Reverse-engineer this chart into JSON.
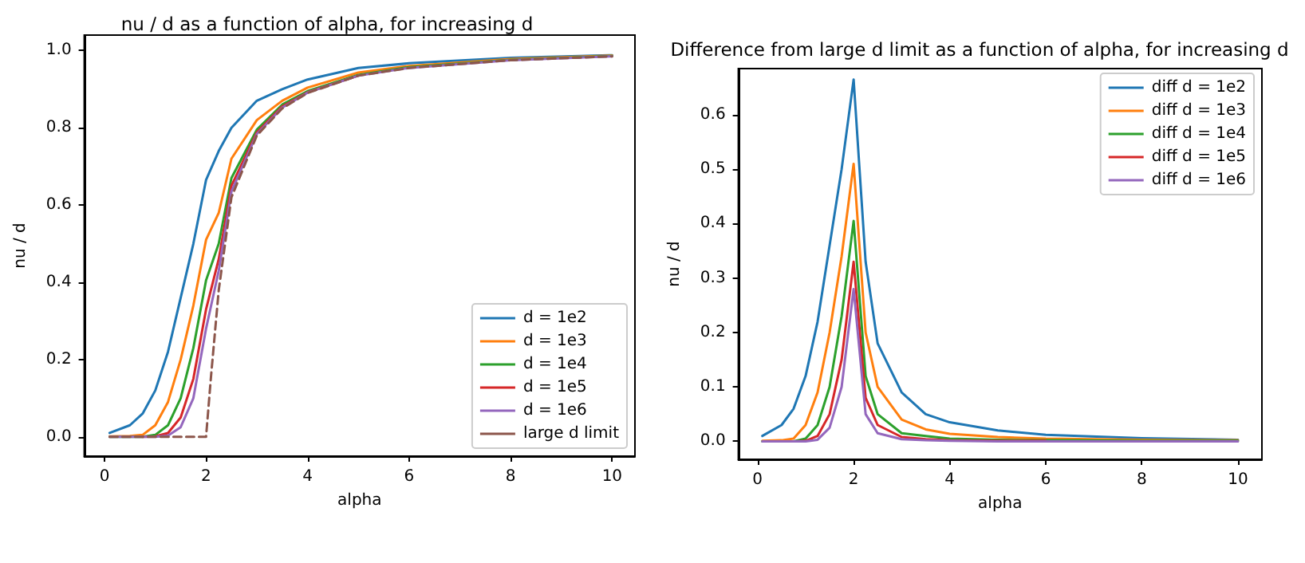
{
  "chart_data": [
    {
      "type": "line",
      "title": "nu / d as a function of alpha, for increasing d",
      "xlabel": "alpha",
      "ylabel": "nu / d",
      "legend": "bottom right",
      "x": [
        0.1,
        0.5,
        0.75,
        1,
        1.25,
        1.5,
        1.75,
        2,
        2.25,
        2.5,
        3,
        3.5,
        4,
        5,
        6,
        8,
        10
      ],
      "xlim": [
        -0.4,
        10.45
      ],
      "xticks": [
        0,
        2,
        4,
        6,
        8,
        10
      ],
      "ylim": [
        -0.05,
        1.04
      ],
      "yticks": [
        {
          "value": 0,
          "label": "0.0"
        },
        {
          "value": 0.2,
          "label": "0.2"
        },
        {
          "value": 0.4,
          "label": "0.4"
        },
        {
          "value": 0.6,
          "label": "0.6"
        },
        {
          "value": 0.8,
          "label": "0.8"
        },
        {
          "value": 1,
          "label": "1.0"
        }
      ],
      "series": [
        {
          "name": "d = 1e2",
          "color": "#1f77b4",
          "values": [
            0.01,
            0.03,
            0.06,
            0.12,
            0.22,
            0.36,
            0.5,
            0.665,
            0.74,
            0.8,
            0.87,
            0.9,
            0.925,
            0.955,
            0.967,
            0.981,
            0.988
          ]
        },
        {
          "name": "d = 1e3",
          "color": "#ff7f0e",
          "values": [
            0.001,
            0.002,
            0.005,
            0.03,
            0.09,
            0.2,
            0.34,
            0.51,
            0.58,
            0.72,
            0.82,
            0.87,
            0.904,
            0.943,
            0.96,
            0.978,
            0.987
          ]
        },
        {
          "name": "d = 1e4",
          "color": "#2ca02c",
          "values": [
            0,
            0,
            0,
            0.005,
            0.03,
            0.1,
            0.23,
            0.405,
            0.5,
            0.67,
            0.795,
            0.86,
            0.895,
            0.937,
            0.957,
            0.976,
            0.986
          ]
        },
        {
          "name": "d = 1e5",
          "color": "#d62728",
          "values": [
            null,
            null,
            0,
            0.001,
            0.01,
            0.05,
            0.15,
            0.33,
            0.46,
            0.65,
            0.788,
            0.855,
            0.892,
            0.935,
            null,
            null,
            null
          ]
        },
        {
          "name": "d = 1e6",
          "color": "#9467bd",
          "values": [
            0,
            0,
            0,
            0,
            0.003,
            0.025,
            0.1,
            0.28,
            0.43,
            0.635,
            0.784,
            0.852,
            0.891,
            0.935,
            0.955,
            0.975,
            0.985
          ]
        },
        {
          "name": "large d limit",
          "color": "#8c564b",
          "line_style": "dashed",
          "x": [
            0.1,
            2,
            2.1,
            2.25,
            2.5,
            3,
            3.5,
            4,
            5,
            6,
            8,
            10
          ],
          "values": [
            0,
            0,
            0.16,
            0.38,
            0.62,
            0.78,
            0.85,
            0.89,
            0.935,
            0.955,
            0.975,
            0.985
          ]
        }
      ]
    },
    {
      "type": "line",
      "title": "Difference from large d limit as a function of alpha, for increasing d",
      "xlabel": "alpha",
      "ylabel": "nu / d",
      "legend": "top right",
      "x": [
        0.1,
        0.5,
        0.75,
        1,
        1.25,
        1.5,
        1.75,
        2,
        2.25,
        2.5,
        3,
        3.5,
        4,
        5,
        6,
        8,
        10
      ],
      "xlim": [
        -0.4,
        10.5
      ],
      "xticks": [
        0,
        2,
        4,
        6,
        8,
        10
      ],
      "ylim": [
        -0.033,
        0.685
      ],
      "yticks": [
        {
          "value": 0,
          "label": "0.0"
        },
        {
          "value": 0.1,
          "label": "0.1"
        },
        {
          "value": 0.2,
          "label": "0.2"
        },
        {
          "value": 0.3,
          "label": "0.3"
        },
        {
          "value": 0.4,
          "label": "0.4"
        },
        {
          "value": 0.5,
          "label": "0.5"
        },
        {
          "value": 0.6,
          "label": "0.6"
        }
      ],
      "series": [
        {
          "name": "diff d = 1e2",
          "color": "#1f77b4",
          "values": [
            0.01,
            0.03,
            0.06,
            0.12,
            0.22,
            0.36,
            0.5,
            0.665,
            0.33,
            0.18,
            0.09,
            0.05,
            0.035,
            0.02,
            0.012,
            0.006,
            0.003
          ]
        },
        {
          "name": "diff d = 1e3",
          "color": "#ff7f0e",
          "values": [
            0.001,
            0.002,
            0.005,
            0.03,
            0.09,
            0.2,
            0.34,
            0.51,
            0.2,
            0.1,
            0.04,
            0.022,
            0.014,
            0.008,
            0.005,
            0.003,
            0.002
          ]
        },
        {
          "name": "diff d = 1e4",
          "color": "#2ca02c",
          "values": [
            0,
            0,
            0,
            0.005,
            0.03,
            0.1,
            0.23,
            0.405,
            0.12,
            0.05,
            0.015,
            0.01,
            0.005,
            0.003,
            0.002,
            0.001,
            0.001
          ]
        },
        {
          "name": "diff d = 1e5",
          "color": "#d62728",
          "values": [
            null,
            null,
            0,
            0.001,
            0.01,
            0.05,
            0.15,
            0.33,
            0.08,
            0.03,
            0.008,
            0.004,
            0.002,
            0.001,
            0.001,
            null,
            null
          ]
        },
        {
          "name": "diff d = 1e6",
          "color": "#9467bd",
          "values": [
            0,
            0,
            0,
            0,
            0.003,
            0.025,
            0.1,
            0.28,
            0.05,
            0.015,
            0.004,
            0.002,
            0.001,
            0,
            0,
            0,
            0
          ]
        }
      ]
    }
  ]
}
